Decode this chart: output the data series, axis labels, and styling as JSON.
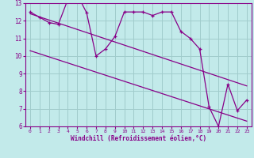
{
  "xlabel": "Windchill (Refroidissement éolien,°C)",
  "bg_color": "#c2eaea",
  "grid_color": "#a0cccc",
  "line_color": "#880088",
  "spine_color": "#880088",
  "xlim": [
    -0.5,
    23.5
  ],
  "ylim": [
    6,
    13
  ],
  "xticks": [
    0,
    1,
    2,
    3,
    4,
    5,
    6,
    7,
    8,
    9,
    10,
    11,
    12,
    13,
    14,
    15,
    16,
    17,
    18,
    19,
    20,
    21,
    22,
    23
  ],
  "yticks": [
    6,
    7,
    8,
    9,
    10,
    11,
    12,
    13
  ],
  "data_x": [
    0,
    1,
    2,
    3,
    4,
    5,
    6,
    7,
    8,
    9,
    10,
    11,
    12,
    13,
    14,
    15,
    16,
    17,
    18,
    19,
    20,
    21,
    22,
    23
  ],
  "data_y": [
    12.5,
    12.2,
    11.9,
    11.8,
    13.2,
    13.5,
    12.45,
    10.0,
    10.4,
    11.1,
    12.5,
    12.5,
    12.5,
    12.3,
    12.5,
    12.5,
    11.4,
    11.0,
    10.4,
    7.1,
    6.0,
    8.4,
    6.9,
    7.5
  ],
  "trend1_x": [
    0,
    23
  ],
  "trend1_y": [
    12.4,
    8.3
  ],
  "trend2_x": [
    0,
    23
  ],
  "trend2_y": [
    10.3,
    6.3
  ],
  "xlabel_fontsize": 5.5,
  "xtick_fontsize": 4.5,
  "ytick_fontsize": 5.5
}
